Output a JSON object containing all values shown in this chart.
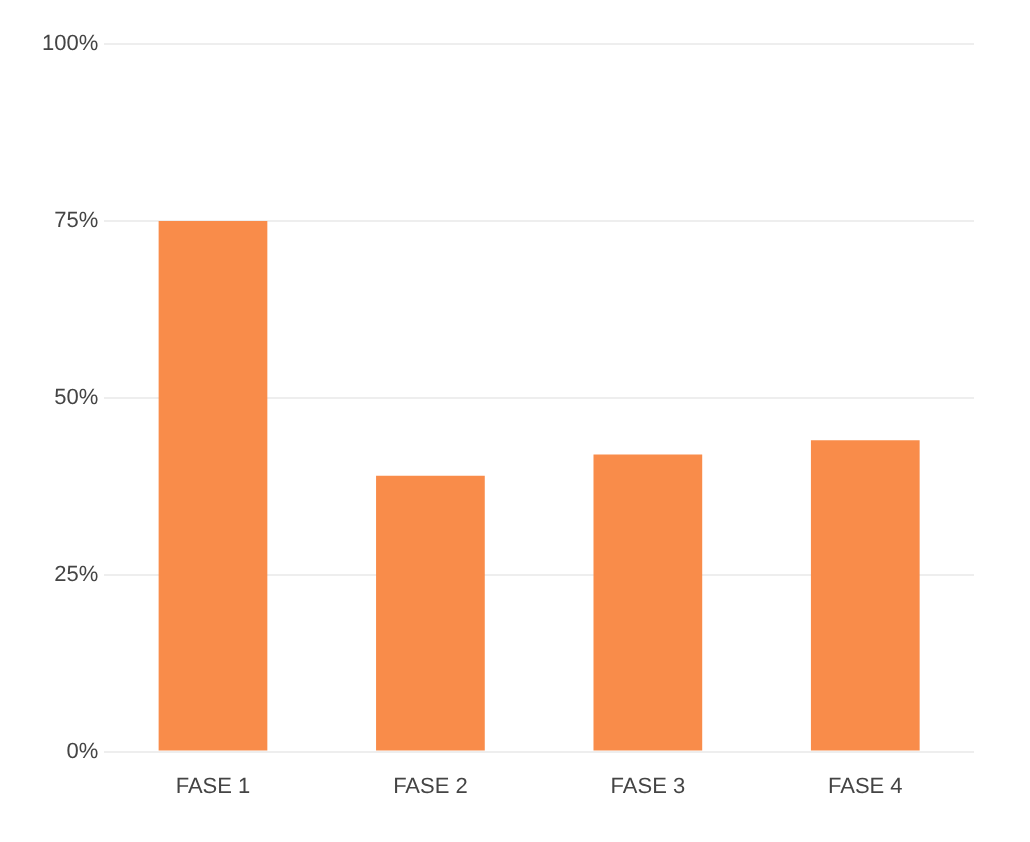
{
  "chart_data": {
    "type": "bar",
    "categories": [
      "FASE 1",
      "FASE 2",
      "FASE 3",
      "FASE 4"
    ],
    "values": [
      75,
      39,
      42,
      44
    ],
    "color": "#f98c4a",
    "ylim": [
      0,
      100
    ],
    "yticks": [
      {
        "value": 0,
        "label": "0%"
      },
      {
        "value": 25,
        "label": "25%"
      },
      {
        "value": 50,
        "label": "50%"
      },
      {
        "value": 75,
        "label": "75%"
      },
      {
        "value": 100,
        "label": "100%"
      }
    ],
    "grid": "y",
    "legend": false
  }
}
